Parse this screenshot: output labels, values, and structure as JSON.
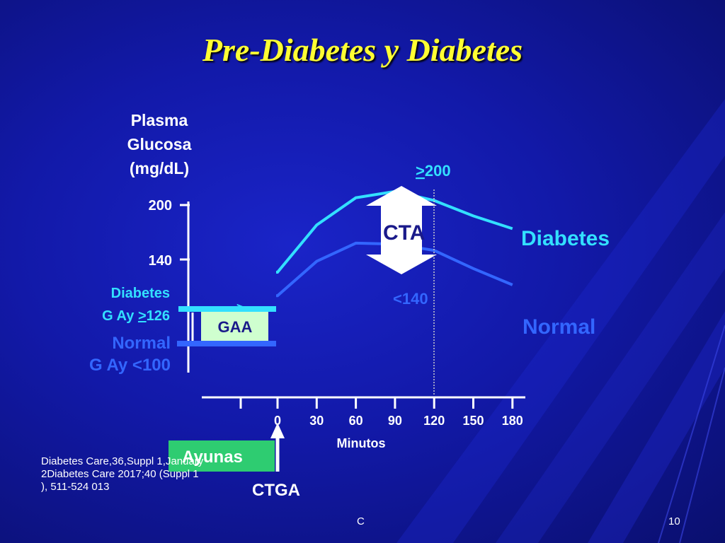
{
  "title": "Pre-Diabetes y Diabetes",
  "colors": {
    "background": "#1219a8",
    "title": "#ffff33",
    "diabetes_line": "#33e0ff",
    "normal_line": "#3366ff",
    "gaa_box": "#cfffcf",
    "ayunas_box": "#2ecc71",
    "cta_arrow": "#ffffff"
  },
  "chart_data": {
    "type": "line",
    "ylabel_lines": [
      "Plasma",
      "Glucosa",
      "(mg/dL)"
    ],
    "xlabel": "Minutos",
    "x_ticks": [
      "0",
      "30",
      "60",
      "90",
      "120",
      "150",
      "180"
    ],
    "y_ticks": [
      "200",
      "140"
    ],
    "series": [
      {
        "name": "Diabetes",
        "x": [
          -60,
          0,
          30,
          60,
          90,
          120,
          150,
          180
        ],
        "y": [
          126,
          126,
          178,
          208,
          215,
          205,
          188,
          174
        ]
      },
      {
        "name": "Normal",
        "x": [
          -60,
          0,
          30,
          60,
          90,
          120,
          150,
          180
        ],
        "y": [
          100,
          100,
          138,
          158,
          157,
          150,
          130,
          112
        ]
      }
    ],
    "annotations": {
      "cta": "CTA",
      "gt200_prefix": ">",
      "gt200_value": "200",
      "lt140": "<140",
      "diabetes_fasting_line1": "Diabetes",
      "diabetes_fasting_line2_prefix": "G Ay ",
      "diabetes_fasting_line2_geq": ">",
      "diabetes_fasting_line2_value": "126",
      "normal_fasting_line1": "Normal",
      "normal_fasting_line2": "G Ay <100",
      "gaa": "GAA",
      "ayunas": "Ayunas",
      "ctga": "CTGA"
    }
  },
  "reference": "Diabetes Care,36,Suppl 1,January 2Diabetes Care 2017;40 (Suppl 1 ), 511-524 013",
  "footer_left": "C",
  "footer_right": "10"
}
